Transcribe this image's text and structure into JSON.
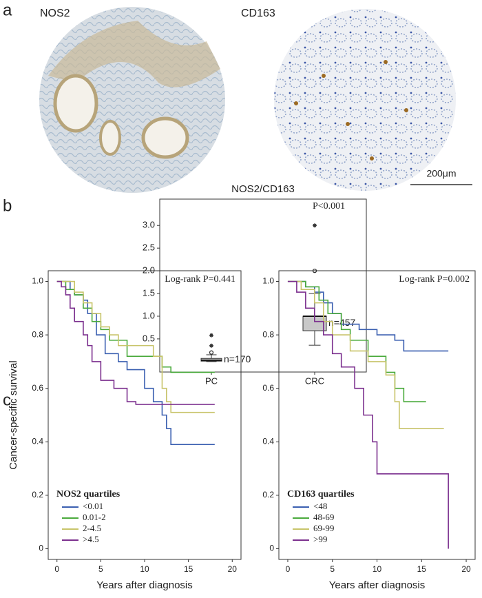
{
  "panel_labels": [
    "a",
    "b",
    "c"
  ],
  "images": [
    {
      "label": "NOS2"
    },
    {
      "label": "CD163"
    }
  ],
  "scale_bar": "200μm",
  "chart_data": [
    {
      "type": "box",
      "title": "NOS2/CD163",
      "categories": [
        "PC",
        "CRC"
      ],
      "annotation": "P<0.001",
      "ylim": [
        -0.23,
        3.58
      ],
      "yticks": [
        0.5,
        {
          "value": 1,
          "label": "1.0"
        },
        1.5,
        {
          "value": 2,
          "label": "2.0"
        },
        2.5,
        {
          "value": 3,
          "label": "3.0"
        }
      ],
      "color": "#c8c8c8",
      "boxes": [
        {
          "whislo": 0,
          "q1": 0.01,
          "med": 0.03,
          "q3": 0.07,
          "whishi": 0.15,
          "n_label": "n=170",
          "outliers": [
            {
              "value": 0.2,
              "marker": "circle"
            },
            {
              "value": 0.35,
              "marker": "star"
            },
            {
              "value": 0.58,
              "marker": "star"
            }
          ]
        },
        {
          "whislo": 0.36,
          "q1": 0.68,
          "med": 1.0,
          "q3": 1.0,
          "whishi": 1.5,
          "n_label": "n=457",
          "outliers": [
            {
              "value": 2.0,
              "marker": "circle"
            },
            {
              "value": 3.0,
              "marker": "star"
            }
          ]
        }
      ]
    },
    {
      "type": "step",
      "ylabel": "Cancer-specific survival",
      "xlabel": "Years after diagnosis",
      "annotation": "Log-rank P=0.441",
      "legend_title": "NOS2 quartiles",
      "xlim": [
        -1,
        21
      ],
      "ylim": [
        -0.04,
        1.04
      ],
      "xticks": [
        0,
        5,
        10,
        15,
        20
      ],
      "yticks": [
        0,
        0.2,
        0.4,
        0.6,
        0.8,
        {
          "value": 1,
          "label": "1.0"
        }
      ],
      "series": [
        {
          "name": "<0.01",
          "color": "#3a5fb0",
          "x": [
            0,
            1.5,
            2,
            3,
            3.5,
            4.5,
            5.5,
            7,
            8,
            10,
            11,
            12,
            12.5,
            13,
            18
          ],
          "values": [
            1,
            0.97,
            0.95,
            0.93,
            0.88,
            0.8,
            0.73,
            0.7,
            0.67,
            0.6,
            0.55,
            0.5,
            0.45,
            0.39,
            0.39
          ]
        },
        {
          "name": "0.01-2",
          "color": "#4aaa3c",
          "x": [
            0,
            1,
            2,
            3,
            4,
            5,
            6,
            8,
            12,
            13,
            18
          ],
          "values": [
            1,
            0.97,
            0.95,
            0.9,
            0.85,
            0.82,
            0.78,
            0.72,
            0.68,
            0.66,
            0.66
          ]
        },
        {
          "name": "2-4.5",
          "color": "#c8c46a",
          "x": [
            0,
            2,
            3,
            4,
            5,
            6,
            7,
            11,
            12,
            12.5,
            13,
            18
          ],
          "values": [
            1,
            0.96,
            0.92,
            0.88,
            0.83,
            0.8,
            0.76,
            0.72,
            0.6,
            0.55,
            0.51,
            0.51
          ]
        },
        {
          "name": ">4.5",
          "color": "#7b2f8e",
          "x": [
            0,
            0.5,
            1,
            1.5,
            2,
            3,
            3.5,
            4,
            5,
            6.5,
            8,
            9,
            18
          ],
          "values": [
            1,
            0.98,
            0.95,
            0.9,
            0.85,
            0.8,
            0.76,
            0.7,
            0.63,
            0.6,
            0.55,
            0.54,
            0.54
          ]
        }
      ]
    },
    {
      "type": "step",
      "xlabel": "Years after diagnosis",
      "annotation": "Log-rank P=0.002",
      "legend_title": "CD163 quartiles",
      "xlim": [
        -1,
        21
      ],
      "ylim": [
        -0.04,
        1.04
      ],
      "xticks": [
        0,
        5,
        10,
        15,
        20
      ],
      "yticks": [
        0,
        0.2,
        0.4,
        0.6,
        0.8,
        {
          "value": 1,
          "label": "1.0"
        }
      ],
      "series": [
        {
          "name": "<48",
          "color": "#3a5fb0",
          "x": [
            0,
            2,
            3,
            4,
            5,
            6,
            8,
            10,
            12,
            13,
            18
          ],
          "values": [
            1,
            0.98,
            0.96,
            0.92,
            0.88,
            0.84,
            0.82,
            0.8,
            0.78,
            0.74,
            0.74
          ]
        },
        {
          "name": "48-69",
          "color": "#4aaa3c",
          "x": [
            0,
            2,
            3.5,
            4.5,
            6,
            7,
            9,
            11,
            12,
            13,
            15.5
          ],
          "values": [
            1,
            0.98,
            0.93,
            0.88,
            0.82,
            0.78,
            0.72,
            0.66,
            0.6,
            0.55,
            0.55
          ]
        },
        {
          "name": "69-99",
          "color": "#c8c46a",
          "x": [
            0,
            1.5,
            3,
            4,
            5,
            7,
            9,
            11,
            12,
            12.5,
            17.5
          ],
          "values": [
            1,
            0.97,
            0.92,
            0.85,
            0.8,
            0.74,
            0.7,
            0.65,
            0.55,
            0.45,
            0.45
          ]
        },
        {
          "name": ">99",
          "color": "#7b2f8e",
          "x": [
            0,
            1,
            2,
            3,
            4,
            5,
            6,
            7.5,
            8.5,
            9.5,
            10,
            18,
            18
          ],
          "values": [
            1,
            0.96,
            0.9,
            0.85,
            0.8,
            0.73,
            0.68,
            0.6,
            0.5,
            0.4,
            0.28,
            0.28,
            0
          ]
        }
      ]
    }
  ]
}
